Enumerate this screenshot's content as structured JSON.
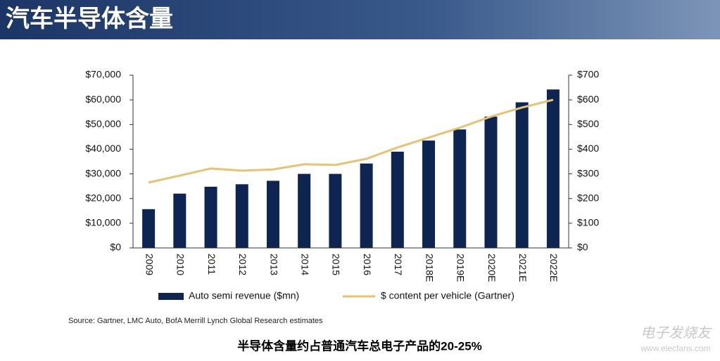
{
  "slide_title": "汽车半导体含量",
  "caption": "半导体含量约占普通汽车总电子产品的20-25%",
  "watermark": [
    "电子发烧友",
    "www.elecfans.com"
  ],
  "chart_data": {
    "type": "bar",
    "source": "Source: Gartner, LMC Auto, BofA Merrill Lynch Global Research estimates",
    "categories": [
      "2009",
      "2010",
      "2011",
      "2012",
      "2013",
      "2014",
      "2015",
      "2016",
      "2017",
      "2018E",
      "2019E",
      "2020E",
      "2021E",
      "2022E"
    ],
    "series": [
      {
        "name": "Auto semi revenue ($mn)",
        "type": "bar",
        "color": "#0d2550",
        "values": [
          15700,
          22000,
          24800,
          25800,
          27200,
          30000,
          30000,
          34200,
          39000,
          43500,
          48000,
          53200,
          59000,
          64200
        ]
      },
      {
        "name": "$ content per vehicle (Gartner)",
        "type": "line",
        "axis": "y2",
        "color": "#e6c272",
        "values": [
          265,
          293,
          322,
          313,
          318,
          339,
          336,
          361,
          407,
          447,
          487,
          532,
          569,
          600
        ]
      }
    ],
    "ylim": [
      0,
      70000
    ],
    "yticks": [
      {
        "value": 0,
        "label": "$0"
      },
      {
        "value": 10000,
        "label": "$10,000"
      },
      {
        "value": 20000,
        "label": "$20,000"
      },
      {
        "value": 30000,
        "label": "$30,000"
      },
      {
        "value": 40000,
        "label": "$40,000"
      },
      {
        "value": 50000,
        "label": "$50,000"
      },
      {
        "value": 60000,
        "label": "$60,000"
      },
      {
        "value": 70000,
        "label": "$70,000"
      }
    ],
    "y2lim": [
      0,
      700
    ],
    "y2ticks": [
      {
        "value": 0,
        "label": "$0"
      },
      {
        "value": 100,
        "label": "$100"
      },
      {
        "value": 200,
        "label": "$200"
      },
      {
        "value": 300,
        "label": "$300"
      },
      {
        "value": 400,
        "label": "$400"
      },
      {
        "value": 500,
        "label": "$500"
      },
      {
        "value": 600,
        "label": "$600"
      },
      {
        "value": 700,
        "label": "$700"
      }
    ],
    "grid": false,
    "legend": "bottom"
  }
}
